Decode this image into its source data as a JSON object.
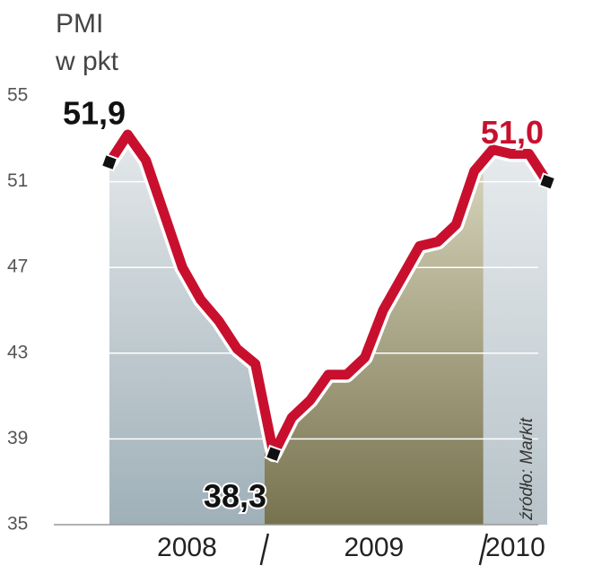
{
  "chart_data": {
    "type": "line",
    "title": "PMI",
    "subtitle": "w pkt",
    "source": "źródło: Markit",
    "x": [
      "2008",
      "2008",
      "2008",
      "2008",
      "2008",
      "2008",
      "2008",
      "2008",
      "2008",
      "2009",
      "2009",
      "2009",
      "2009",
      "2009",
      "2009",
      "2009",
      "2009",
      "2009",
      "2009",
      "2009",
      "2009",
      "2010",
      "2010",
      "2010",
      "2010"
    ],
    "series": [
      {
        "name": "PMI",
        "color": "#c8102e",
        "values": [
          51.9,
          53.2,
          52.0,
          49.5,
          47.0,
          45.5,
          44.5,
          43.2,
          42.5,
          38.3,
          40.0,
          40.8,
          42.0,
          42.0,
          42.8,
          45.0,
          46.5,
          48.0,
          48.2,
          49.0,
          51.5,
          52.5,
          52.3,
          52.3,
          51.0
        ],
        "value_labels": [
          "51,9",
          null,
          null,
          null,
          null,
          null,
          null,
          null,
          null,
          "38,3",
          null,
          null,
          null,
          null,
          null,
          null,
          null,
          null,
          null,
          null,
          null,
          null,
          null,
          null,
          "51,0"
        ]
      }
    ],
    "ylim": [
      35,
      55
    ],
    "yticks": [
      35,
      39,
      43,
      47,
      51,
      55
    ],
    "grid": true
  }
}
